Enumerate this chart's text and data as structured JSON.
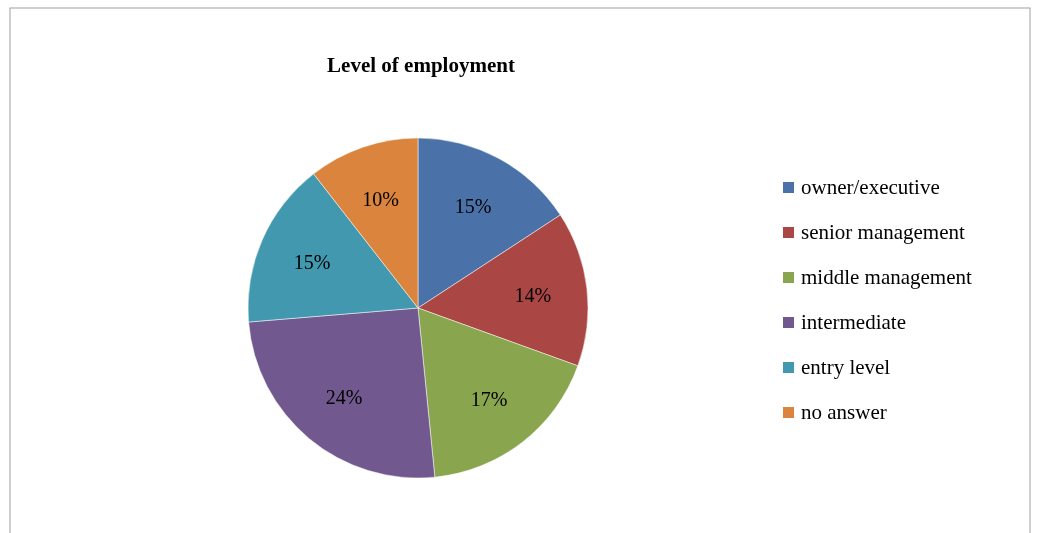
{
  "chart_data": {
    "type": "pie",
    "title": "Level of employment",
    "categories": [
      "owner/executive",
      "senior management",
      "middle management",
      "intermediate",
      "entry level",
      "no answer"
    ],
    "values": [
      15,
      14,
      17,
      24,
      15,
      10
    ],
    "value_labels": [
      "15%",
      "14%",
      "17%",
      "24%",
      "15%",
      "10%"
    ],
    "colors": [
      "#4a72a8",
      "#aa4644",
      "#89a54e",
      "#71588f",
      "#4198af",
      "#db843d"
    ],
    "legend": "right"
  }
}
